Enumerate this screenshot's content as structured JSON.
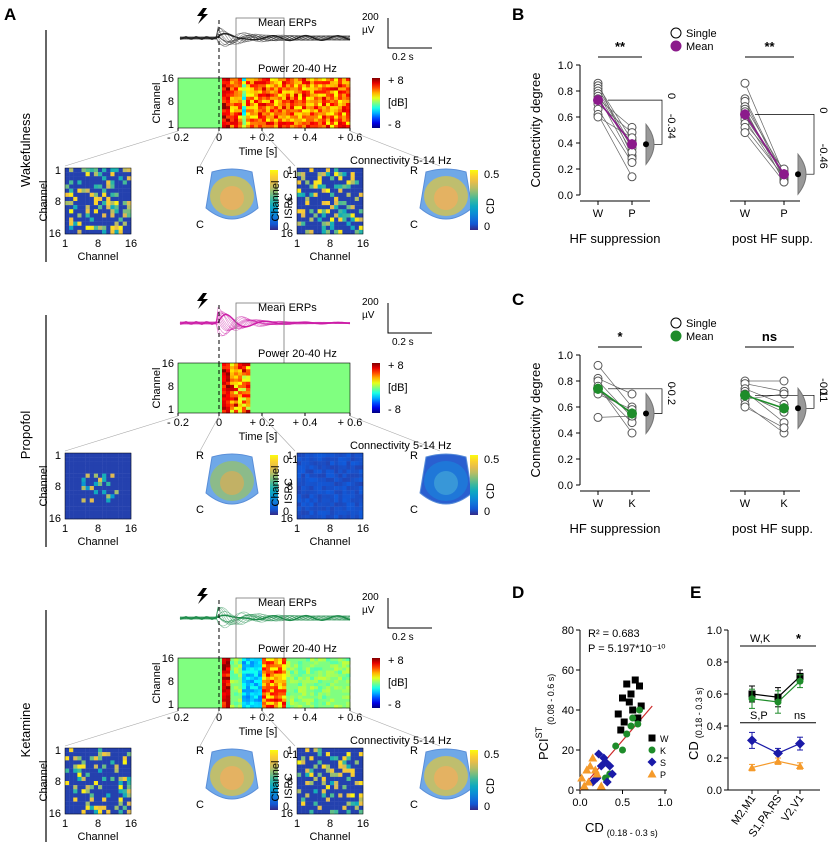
{
  "panels": {
    "A": "A",
    "B": "B",
    "C": "C",
    "D": "D",
    "E": "E"
  },
  "rows": [
    {
      "key": "wake",
      "state": "Wakefulness",
      "erp_color": "#222222",
      "erp_label": "Mean ERPs",
      "power_label": "Power 20-40 Hz",
      "conn_label": "Connectivity 5-14 Hz",
      "matrix_style": "wake"
    },
    {
      "key": "prop",
      "state": "Propofol",
      "erp_color": "#cc1fa8",
      "erp_label": "Mean ERPs",
      "power_label": "Power 20-40 Hz",
      "conn_label": "Connectivity 5-14 Hz",
      "matrix_style": "prop"
    },
    {
      "key": "ket",
      "state": "Ketamine",
      "erp_color": "#1e8c4a",
      "erp_label": "Mean ERPs",
      "power_label": "Power 20-40 Hz",
      "conn_label": "Connectivity 5-14 Hz",
      "matrix_style": "ket"
    }
  ],
  "scale_bar": {
    "amp": "200",
    "amp_unit": "µV",
    "time": "0.2 s"
  },
  "heatmap_axis": {
    "ylabel": "Channel",
    "yticks": [
      "16",
      "8",
      "1"
    ],
    "xticks": [
      "- 0.2",
      "0",
      "+ 0.2",
      "+ 0.4",
      "+ 0.6"
    ],
    "xlabel": "Time [s]"
  },
  "colorbar_db": {
    "top": "+ 8",
    "mid": "[dB]",
    "bottom": "- 8"
  },
  "matrix_axis": {
    "xlabel": "Channel",
    "ylabel": "Channel",
    "ticks": [
      "1",
      "8",
      "16"
    ]
  },
  "head_labels": {
    "top": "R",
    "bottom": "C"
  },
  "ispc_bar": {
    "label": "ISPC",
    "top": "0.1",
    "bottom": "0"
  },
  "cd_bar": {
    "label": "CD",
    "top": "0.5",
    "bottom": "0"
  },
  "panel_B": {
    "ylabel": "Connectivity degree",
    "yticks": [
      "0.0",
      "0.2",
      "0.4",
      "0.6",
      "0.8",
      "1.0"
    ],
    "legend": {
      "single": "Single",
      "mean": "Mean"
    },
    "mean_color": "#8b1a8b",
    "groups": [
      {
        "label": "HF suppression",
        "x": [
          "W",
          "P"
        ],
        "sig": "**",
        "effect_zero": "0",
        "effect": "-0.34",
        "pairs": [
          [
            0.86,
            0.3
          ],
          [
            0.84,
            0.42
          ],
          [
            0.82,
            0.38
          ],
          [
            0.8,
            0.36
          ],
          [
            0.78,
            0.33
          ],
          [
            0.76,
            0.28
          ],
          [
            0.74,
            0.52
          ],
          [
            0.72,
            0.4
          ],
          [
            0.7,
            0.48
          ],
          [
            0.66,
            0.25
          ],
          [
            0.62,
            0.14
          ],
          [
            0.6,
            0.44
          ]
        ],
        "mean": [
          0.73,
          0.39
        ]
      },
      {
        "label": "post HF supp.",
        "x": [
          "W",
          "P"
        ],
        "sig": "**",
        "effect_zero": "0",
        "effect": "-0.46",
        "pairs": [
          [
            0.86,
            0.16
          ],
          [
            0.74,
            0.14
          ],
          [
            0.72,
            0.12
          ],
          [
            0.68,
            0.18
          ],
          [
            0.66,
            0.1
          ],
          [
            0.64,
            0.14
          ],
          [
            0.6,
            0.16
          ],
          [
            0.58,
            0.12
          ],
          [
            0.55,
            0.2
          ],
          [
            0.52,
            0.14
          ],
          [
            0.48,
            0.1
          ]
        ],
        "mean": [
          0.62,
          0.16
        ]
      }
    ]
  },
  "panel_C": {
    "ylabel": "Connectivity degree",
    "yticks": [
      "0.0",
      "0.2",
      "0.4",
      "0.6",
      "0.8",
      "1.0"
    ],
    "legend": {
      "single": "Single",
      "mean": "Mean"
    },
    "mean_color": "#1e8c2a",
    "groups": [
      {
        "label": "HF suppression",
        "x": [
          "W",
          "K"
        ],
        "sig": "*",
        "effect_zero": "0",
        "effect": "-0.2",
        "pairs": [
          [
            0.92,
            0.6
          ],
          [
            0.82,
            0.7
          ],
          [
            0.8,
            0.52
          ],
          [
            0.76,
            0.4
          ],
          [
            0.74,
            0.48
          ],
          [
            0.72,
            0.56
          ],
          [
            0.7,
            0.58
          ],
          [
            0.52,
            0.53
          ]
        ],
        "mean": [
          0.74,
          0.55
        ]
      },
      {
        "label": "post HF supp.",
        "x": [
          "W",
          "K"
        ],
        "sig": "ns",
        "effect_zero": "0",
        "effect": "-0.11",
        "pairs": [
          [
            0.8,
            0.8
          ],
          [
            0.78,
            0.72
          ],
          [
            0.74,
            0.62
          ],
          [
            0.72,
            0.48
          ],
          [
            0.7,
            0.56
          ],
          [
            0.66,
            0.7
          ],
          [
            0.62,
            0.4
          ],
          [
            0.6,
            0.44
          ]
        ],
        "mean": [
          0.69,
          0.59
        ]
      }
    ]
  },
  "panel_D": {
    "title_r2": "R² = 0.683",
    "title_p": "P = 5.197*10⁻¹⁰",
    "ylabel": "PCI",
    "ylabel_sup": "ST",
    "ylabel_sub": "(0.08 - 0.6 s)",
    "xlabel": "CD",
    "xlabel_sub": "(0.18 - 0.3 s)",
    "yticks": [
      "0",
      "20",
      "40",
      "60",
      "80"
    ],
    "xticks": [
      "0.0",
      "0.5",
      "1.0"
    ],
    "legend": [
      {
        "label": "W",
        "color": "#000000",
        "shape": "square"
      },
      {
        "label": "K",
        "color": "#1e8c2a",
        "shape": "circle"
      },
      {
        "label": "S",
        "color": "#1a1aa8",
        "shape": "diamond"
      },
      {
        "label": "P",
        "color": "#f59a2a",
        "shape": "triangle"
      }
    ],
    "points": {
      "W": [
        [
          0.45,
          38
        ],
        [
          0.5,
          46
        ],
        [
          0.52,
          34
        ],
        [
          0.55,
          53
        ],
        [
          0.58,
          44
        ],
        [
          0.6,
          48
        ],
        [
          0.62,
          40
        ],
        [
          0.65,
          55
        ],
        [
          0.68,
          36
        ],
        [
          0.7,
          52
        ],
        [
          0.72,
          42
        ],
        [
          0.48,
          30
        ]
      ],
      "K": [
        [
          0.42,
          22
        ],
        [
          0.5,
          20
        ],
        [
          0.55,
          28
        ],
        [
          0.6,
          32
        ],
        [
          0.62,
          36
        ],
        [
          0.68,
          33
        ],
        [
          0.7,
          40
        ],
        [
          0.3,
          6
        ],
        [
          0.35,
          8
        ]
      ],
      "S": [
        [
          0.15,
          4
        ],
        [
          0.2,
          6
        ],
        [
          0.25,
          12
        ],
        [
          0.28,
          16
        ],
        [
          0.3,
          14
        ],
        [
          0.35,
          12
        ],
        [
          0.38,
          8
        ],
        [
          0.32,
          4
        ],
        [
          0.22,
          18
        ]
      ],
      "P": [
        [
          0.02,
          6
        ],
        [
          0.05,
          2
        ],
        [
          0.08,
          10
        ],
        [
          0.1,
          4
        ],
        [
          0.12,
          12
        ],
        [
          0.15,
          16
        ],
        [
          0.18,
          10
        ],
        [
          0.2,
          8
        ],
        [
          0.25,
          2
        ]
      ]
    },
    "fit": [
      [
        0.0,
        0
      ],
      [
        0.85,
        42
      ]
    ],
    "fit_color": "#cc2a2a"
  },
  "panel_E": {
    "ylabel": "CD",
    "ylabel_sub": "(0.18 - 0.3 s)",
    "yticks": [
      "0.0",
      "0.2",
      "0.4",
      "0.6",
      "0.8",
      "1.0"
    ],
    "categories": [
      "M2,M1",
      "S1,PA,RS",
      "V2,V1"
    ],
    "bracket_top": "W,K",
    "sig_top": "*",
    "bracket_bottom": "S,P",
    "sig_bottom": "ns",
    "series": [
      {
        "name": "W",
        "color": "#000000",
        "values": [
          0.6,
          0.58,
          0.71
        ],
        "err": [
          0.05,
          0.06,
          0.04
        ],
        "marker": "square"
      },
      {
        "name": "K",
        "color": "#1e8c2a",
        "values": [
          0.57,
          0.55,
          0.68
        ],
        "err": [
          0.06,
          0.07,
          0.04
        ],
        "marker": "circle"
      },
      {
        "name": "S",
        "color": "#1a1aa8",
        "values": [
          0.31,
          0.23,
          0.29
        ],
        "err": [
          0.05,
          0.03,
          0.04
        ],
        "marker": "diamond"
      },
      {
        "name": "P",
        "color": "#f59a2a",
        "values": [
          0.14,
          0.18,
          0.15
        ],
        "err": [
          0.02,
          0.02,
          0.02
        ],
        "marker": "triangle"
      }
    ]
  }
}
